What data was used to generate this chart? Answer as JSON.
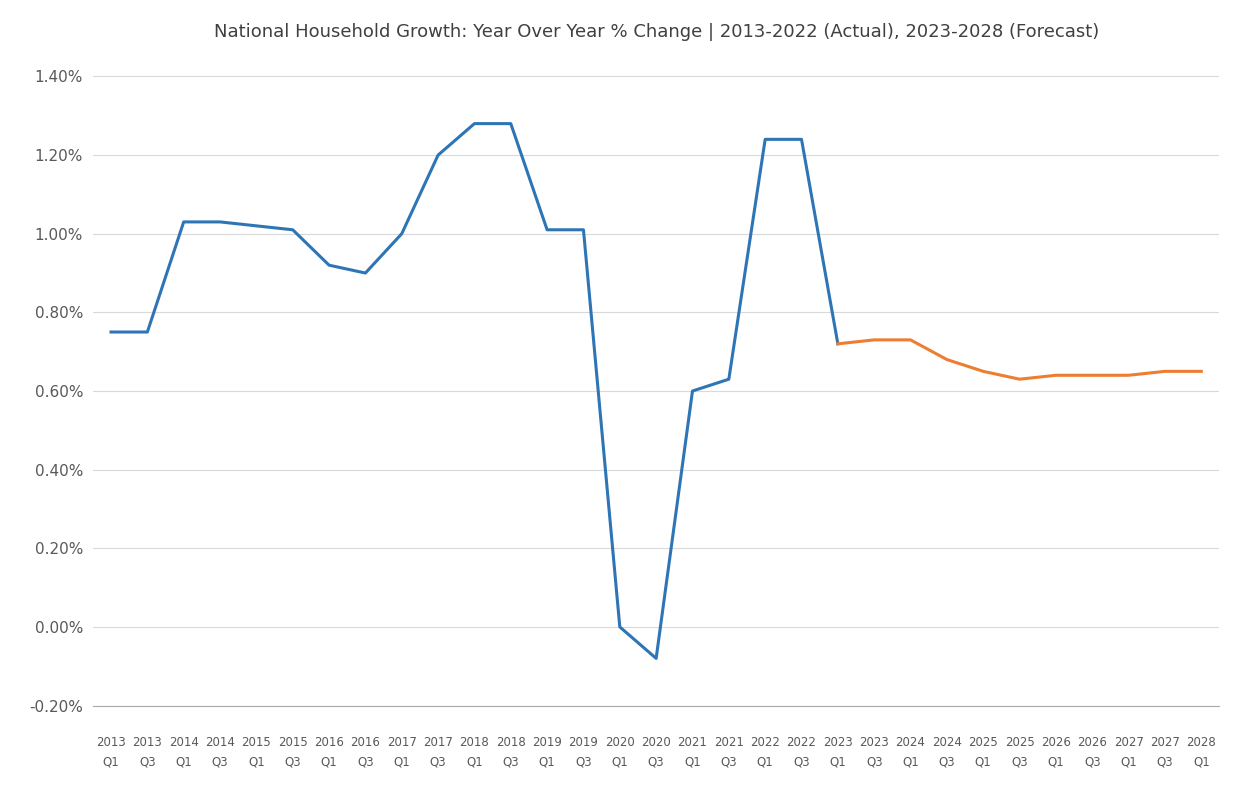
{
  "title": "National Household Growth: Year Over Year % Change | 2013-2022 (Actual), 2023-2028 (Forecast)",
  "ylim": [
    -0.002,
    0.0145
  ],
  "yticks": [
    -0.002,
    0.0,
    0.002,
    0.004,
    0.006,
    0.008,
    0.01,
    0.012,
    0.014
  ],
  "ytick_labels": [
    "-0.20%",
    "0.00%",
    "0.20%",
    "0.40%",
    "0.60%",
    "0.80%",
    "1.00%",
    "1.20%",
    "1.40%"
  ],
  "actual_color": "#2E75B6",
  "forecast_color": "#ED7D31",
  "line_width": 2.2,
  "background_color": "#FFFFFF",
  "actual_x": [
    "2013 Q1",
    "2013 Q3",
    "2014 Q1",
    "2014 Q3",
    "2015 Q1",
    "2015 Q3",
    "2016 Q1",
    "2016 Q3",
    "2017 Q1",
    "2017 Q3",
    "2018 Q1",
    "2018 Q3",
    "2019 Q1",
    "2019 Q3",
    "2020 Q1",
    "2020 Q3",
    "2021 Q1",
    "2021 Q3",
    "2022 Q1",
    "2022 Q3",
    "2023 Q1"
  ],
  "actual_y": [
    0.0075,
    0.0075,
    0.0103,
    0.0103,
    0.0102,
    0.0101,
    0.0092,
    0.009,
    0.01,
    0.012,
    0.0128,
    0.0128,
    0.0101,
    0.0101,
    0.0,
    -0.0008,
    0.006,
    0.0063,
    0.0124,
    0.0124,
    0.0072
  ],
  "forecast_x": [
    "2023 Q1",
    "2023 Q3",
    "2024 Q1",
    "2024 Q3",
    "2025 Q1",
    "2025 Q3",
    "2026 Q1",
    "2026 Q3",
    "2027 Q1",
    "2027 Q3",
    "2028 Q1"
  ],
  "forecast_y": [
    0.0072,
    0.0073,
    0.0073,
    0.0068,
    0.0065,
    0.0063,
    0.0064,
    0.0064,
    0.0064,
    0.0065,
    0.0065
  ],
  "x_labels_top": [
    "2013",
    "2013",
    "2014",
    "2014",
    "2015",
    "2015",
    "2016",
    "2016",
    "2017",
    "2017",
    "2018",
    "2018",
    "2019",
    "2019",
    "2020",
    "2020",
    "2021",
    "2021",
    "2022",
    "2022",
    "2023",
    "2023",
    "2024",
    "2024",
    "2025",
    "2025",
    "2026",
    "2026",
    "2027",
    "2027",
    "2028"
  ],
  "x_labels_bottom": [
    "Q1",
    "Q3",
    "Q1",
    "Q3",
    "Q1",
    "Q3",
    "Q1",
    "Q3",
    "Q1",
    "Q3",
    "Q1",
    "Q3",
    "Q1",
    "Q3",
    "Q1",
    "Q3",
    "Q1",
    "Q3",
    "Q1",
    "Q3",
    "Q1",
    "Q3",
    "Q1",
    "Q3",
    "Q1",
    "Q3",
    "Q1",
    "Q3",
    "Q1",
    "Q3",
    "Q1"
  ]
}
